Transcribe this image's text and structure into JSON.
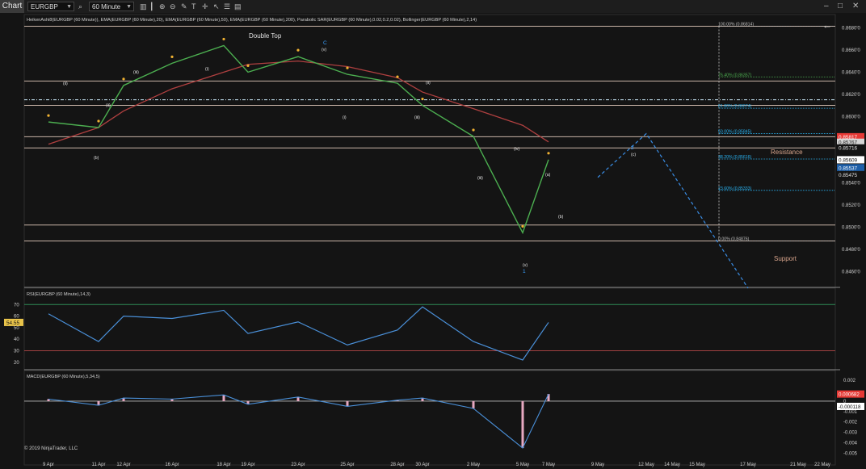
{
  "toolbar": {
    "chart_tab": "Chart",
    "instrument": "EURGBP",
    "timeframe": "60 Minute",
    "icons": [
      "search-icon",
      "bar-chart-icon",
      "candlestick-icon",
      "zoom-in-icon",
      "zoom-out-icon",
      "draw-icon",
      "text-icon",
      "crosshair-icon",
      "cursor-icon",
      "properties-icon",
      "template-icon",
      "minimize-icon",
      "maximize-icon",
      "close-icon"
    ]
  },
  "price_panel": {
    "indicators_label": "HeikenAshi8(EURGBP (60 Minute)), EMA(EURGBP (60 Minute),20), EMA(EURGBP (60 Minute),50), EMA(EURGBP (60 Minute),200), Parabolic SAR(EURGBP (60 Minute),0.02,0.2,0.02), Bollinger(EURGBP (60 Minute),2,14)",
    "double_top_label": "Double Top",
    "resistance_label": "Resistance",
    "support_label": "Support",
    "wave_labels": [
      {
        "text": "(v)",
        "x": 398,
        "y": 47
      },
      {
        "text": "(ii)",
        "x": 78,
        "y": 89
      },
      {
        "text": "(ii)",
        "x": 131,
        "y": 116
      },
      {
        "text": "(iii)",
        "x": 165,
        "y": 75
      },
      {
        "text": "(b)",
        "x": 116,
        "y": 181
      },
      {
        "text": "(i)",
        "x": 254,
        "y": 71
      },
      {
        "text": "(i)",
        "x": 424,
        "y": 131
      },
      {
        "text": "(ii)",
        "x": 527,
        "y": 88
      },
      {
        "text": "(iii)",
        "x": 513,
        "y": 131
      },
      {
        "text": "(iii)",
        "x": 591,
        "y": 206
      },
      {
        "text": "(iv)",
        "x": 636,
        "y": 170
      },
      {
        "text": "(v)",
        "x": 647,
        "y": 314
      },
      {
        "text": "(a)",
        "x": 675,
        "y": 202
      },
      {
        "text": "(b)",
        "x": 691,
        "y": 254
      },
      {
        "text": "(c)",
        "x": 781,
        "y": 177
      }
    ],
    "wave_numbers": [
      {
        "text": "C",
        "x": 400,
        "y": 39,
        "color": "#3aa0ff"
      },
      {
        "text": "2",
        "x": 781,
        "y": 169,
        "color": "#3aa0ff"
      },
      {
        "text": "1",
        "x": 647,
        "y": 322,
        "color": "#3aa0ff"
      }
    ],
    "fib_levels": [
      {
        "label": "100.00% (0.86814)",
        "value": 0.86814,
        "color": "#bfbfbf"
      },
      {
        "label": "76.40% (0.86357)",
        "value": 0.86357,
        "color": "#4caf50"
      },
      {
        "label": "61.80% (0.86074)",
        "value": 0.86074,
        "color": "#29b6f6"
      },
      {
        "label": "50.00% (0.85845)",
        "value": 0.85845,
        "color": "#29b6f6"
      },
      {
        "label": "38.20% (0.85616)",
        "value": 0.85616,
        "color": "#29b6f6"
      },
      {
        "label": "23.60% (0.85333)",
        "value": 0.85333,
        "color": "#29b6f6"
      },
      {
        "label": "0.00% (0.84876)",
        "value": 0.84876,
        "color": "#bfbfbf"
      }
    ],
    "horizontal_levels": [
      0.86814,
      0.8632,
      0.861,
      0.85817,
      0.85716,
      0.8502,
      0.84876
    ],
    "price_ticks": [
      "0.8680'0",
      "0.8660'0",
      "0.8640'0",
      "0.8620'0",
      "0.8600'0",
      "0.8580'0",
      "0.8560'0",
      "0.8540'0",
      "0.8520'0",
      "0.8500'0",
      "0.8480'0",
      "0.8460'0"
    ],
    "price_badges": [
      {
        "text": "0.85817",
        "value": 0.85817,
        "bg": "#e53935",
        "fg": "#ffffff"
      },
      {
        "text": "0.85767",
        "value": 0.85767,
        "bg": "#d6d6d6",
        "fg": "#222222"
      },
      {
        "text": "0.85716",
        "value": 0.85716,
        "bg": "#141414",
        "fg": "#e0e0e0"
      },
      {
        "text": "0.85609",
        "value": 0.85609,
        "bg": "#ffffff",
        "fg": "#111111"
      },
      {
        "text": "0.85537",
        "value": 0.85537,
        "bg": "#1e5fa8",
        "fg": "#ffffff"
      },
      {
        "text": "0.85475",
        "value": 0.85475,
        "bg": "#141414",
        "fg": "#e0e0e0"
      }
    ]
  },
  "rsi_panel": {
    "label": "RSI(EURGBP (60 Minute),14,3)",
    "ticks": [
      "70",
      "60",
      "50",
      "40",
      "30",
      "20"
    ],
    "current_badge": "54.55",
    "overbought": 70,
    "oversold": 30
  },
  "macd_panel": {
    "label": "MACD(EURGBP (60 Minute),5,34,5)",
    "ticks": [
      "0.002",
      "0",
      "-0.001",
      "-0.002",
      "-0.003",
      "-0.004",
      "-0.005"
    ],
    "badges": [
      {
        "text": "0.000682",
        "bg": "#e53935",
        "fg": "#ffffff"
      },
      {
        "text": "-0.000118",
        "bg": "#ffffff",
        "fg": "#111111"
      }
    ],
    "copyright": "© 2019 NinjaTrader, LLC"
  },
  "x_axis": {
    "labels": [
      "9 Apr",
      "11 Apr",
      "12 Apr",
      "16 Apr",
      "18 Apr",
      "19 Apr",
      "23 Apr",
      "25 Apr",
      "28 Apr",
      "30 Apr",
      "2 May",
      "5 May",
      "7 May",
      "9 May",
      "12 May",
      "14 May",
      "15 May",
      "17 May",
      "21 May",
      "22 May"
    ]
  },
  "chart_data": {
    "type": "line",
    "instrument": "EURGBP",
    "timeframe": "60 Minute",
    "series": [
      {
        "name": "HeikenAshi8(EURGBP (60 Minute))",
        "x": [
          "9 Apr",
          "11 Apr",
          "12 Apr",
          "16 Apr",
          "18 Apr",
          "19 Apr",
          "23 Apr",
          "25 Apr",
          "28 Apr",
          "30 Apr",
          "2 May",
          "5 May",
          "7 May"
        ],
        "values": [
          0.8595,
          0.859,
          0.8628,
          0.8648,
          0.8664,
          0.864,
          0.8654,
          0.8638,
          0.863,
          0.861,
          0.8582,
          0.8495,
          0.8561
        ]
      },
      {
        "name": "EMA(EURGBP (60 Minute),200)",
        "x": [
          "9 Apr",
          "11 Apr",
          "12 Apr",
          "16 Apr",
          "18 Apr",
          "19 Apr",
          "23 Apr",
          "25 Apr",
          "28 Apr",
          "30 Apr",
          "2 May",
          "5 May",
          "7 May"
        ],
        "values": [
          0.8575,
          0.859,
          0.8605,
          0.8625,
          0.864,
          0.8647,
          0.865,
          0.8645,
          0.8635,
          0.8622,
          0.8607,
          0.8592,
          0.8577
        ]
      }
    ],
    "projection": [
      {
        "x": "9 May",
        "value": 0.8545
      },
      {
        "x": "12 May",
        "value": 0.85845
      },
      {
        "x": "17 May",
        "value": 0.8445
      }
    ],
    "rsi": {
      "name": "RSI(EURGBP (60 Minute),14,3)",
      "x": [
        "9 Apr",
        "11 Apr",
        "12 Apr",
        "16 Apr",
        "18 Apr",
        "19 Apr",
        "23 Apr",
        "25 Apr",
        "28 Apr",
        "30 Apr",
        "2 May",
        "5 May",
        "7 May"
      ],
      "values": [
        62,
        38,
        60,
        58,
        65,
        45,
        55,
        35,
        48,
        68,
        38,
        22,
        54.55
      ]
    },
    "macd": {
      "name": "MACD(EURGBP (60 Minute),5,34,5)",
      "x": [
        "9 Apr",
        "11 Apr",
        "12 Apr",
        "16 Apr",
        "18 Apr",
        "19 Apr",
        "23 Apr",
        "25 Apr",
        "28 Apr",
        "30 Apr",
        "2 May",
        "5 May",
        "7 May"
      ],
      "values": [
        0.0002,
        -0.0004,
        0.0003,
        0.0002,
        0.0006,
        -0.0003,
        0.0004,
        -0.0005,
        0.0001,
        0.0003,
        -0.0007,
        -0.0045,
        0.000682
      ]
    },
    "ylim": [
      0.8445,
      0.8692
    ],
    "grid": false
  }
}
